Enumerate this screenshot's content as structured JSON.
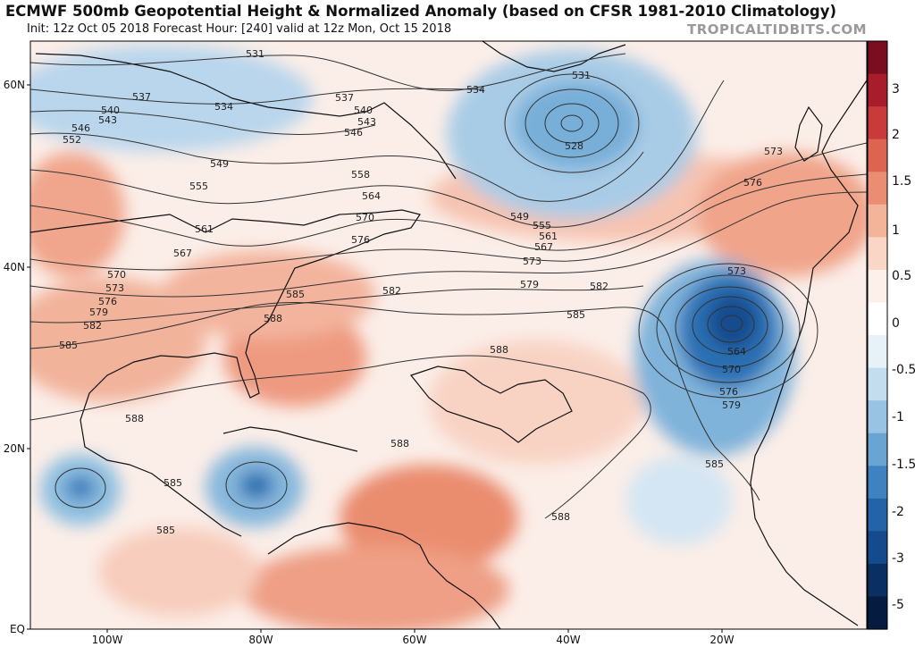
{
  "header": {
    "title": "ECMWF 500mb Geopotential Height & Normalized Anomaly (based on CFSR 1981-2010 Climatology)",
    "subtitle": "Init: 12z Oct 05 2018   Forecast Hour: [240]   valid at 12z Mon, Oct 15 2018",
    "credit": "TROPICALTIDBITS.COM"
  },
  "axes": {
    "lat_labels": [
      "60N",
      "40N",
      "20N",
      "EQ"
    ],
    "lon_labels": [
      "100W",
      "80W",
      "60W",
      "40W",
      "20W"
    ]
  },
  "colorbar": {
    "labels": [
      "3",
      "2",
      "1.5",
      "1",
      "0.5",
      "0",
      "-0.5",
      "-1",
      "-1.5",
      "-2",
      "-3",
      "-5"
    ],
    "colors": [
      "#7a0d1f",
      "#a81d2c",
      "#c93a3a",
      "#dc6450",
      "#ea8d72",
      "#f4b49a",
      "#f9d6c6",
      "#fdf0ea",
      "#ffffff",
      "#e6f1f8",
      "#c3dcee",
      "#98c3e2",
      "#6aa4d2",
      "#3f82bf",
      "#2563a8",
      "#154a8c",
      "#0a2f63",
      "#051c40"
    ]
  },
  "contours": {
    "labels": [
      "531",
      "534",
      "537",
      "540",
      "543",
      "546",
      "549",
      "552",
      "555",
      "558",
      "561",
      "564",
      "567",
      "570",
      "573",
      "576",
      "579",
      "582",
      "585",
      "588",
      "528"
    ]
  },
  "colors": {
    "negative_dark": "#1f5fa8",
    "positive": "#ef9a7e",
    "contour": "#333333",
    "coast": "#111111"
  }
}
